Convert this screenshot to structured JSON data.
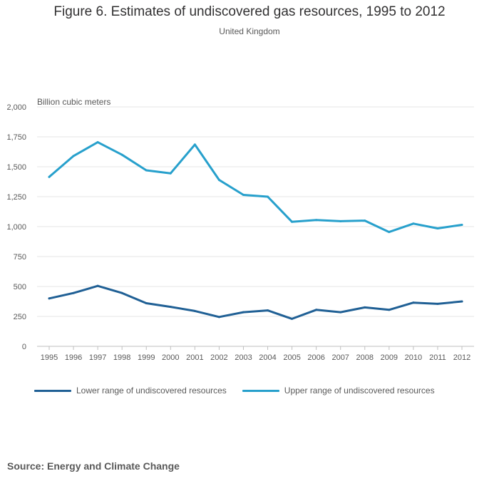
{
  "chart_data": {
    "type": "line",
    "title": "Figure 6. Estimates of undiscovered gas resources, 1995 to 2012",
    "subtitle": "United Kingdom",
    "ylabel": "Billion cubic meters",
    "xlabel": "",
    "ylim": [
      0,
      2000
    ],
    "yticks": [
      {
        "value": 0,
        "label": "0"
      },
      {
        "value": 250,
        "label": "250"
      },
      {
        "value": 500,
        "label": "500"
      },
      {
        "value": 750,
        "label": "750"
      },
      {
        "value": 1000,
        "label": "1,000"
      },
      {
        "value": 1250,
        "label": "1,250"
      },
      {
        "value": 1500,
        "label": "1,500"
      },
      {
        "value": 1750,
        "label": "1,750"
      },
      {
        "value": 2000,
        "label": "2,000"
      }
    ],
    "categories": [
      "1995",
      "1996",
      "1997",
      "1998",
      "1999",
      "2000",
      "2001",
      "2002",
      "2003",
      "2004",
      "2005",
      "2006",
      "2007",
      "2008",
      "2009",
      "2010",
      "2011",
      "2012"
    ],
    "grid": true,
    "legend_position": "bottom-left",
    "series": [
      {
        "name": "Lower range of undiscovered resources",
        "color": "#206095",
        "values": [
          400,
          445,
          505,
          445,
          360,
          330,
          295,
          245,
          285,
          300,
          230,
          305,
          285,
          325,
          305,
          365,
          355,
          375
        ]
      },
      {
        "name": "Upper range of undiscovered resources",
        "color": "#27a0cc",
        "values": [
          1415,
          1590,
          1705,
          1600,
          1470,
          1445,
          1685,
          1390,
          1265,
          1250,
          1040,
          1055,
          1045,
          1050,
          955,
          1025,
          985,
          1015
        ]
      }
    ]
  },
  "source": "Source: Energy and Climate Change"
}
